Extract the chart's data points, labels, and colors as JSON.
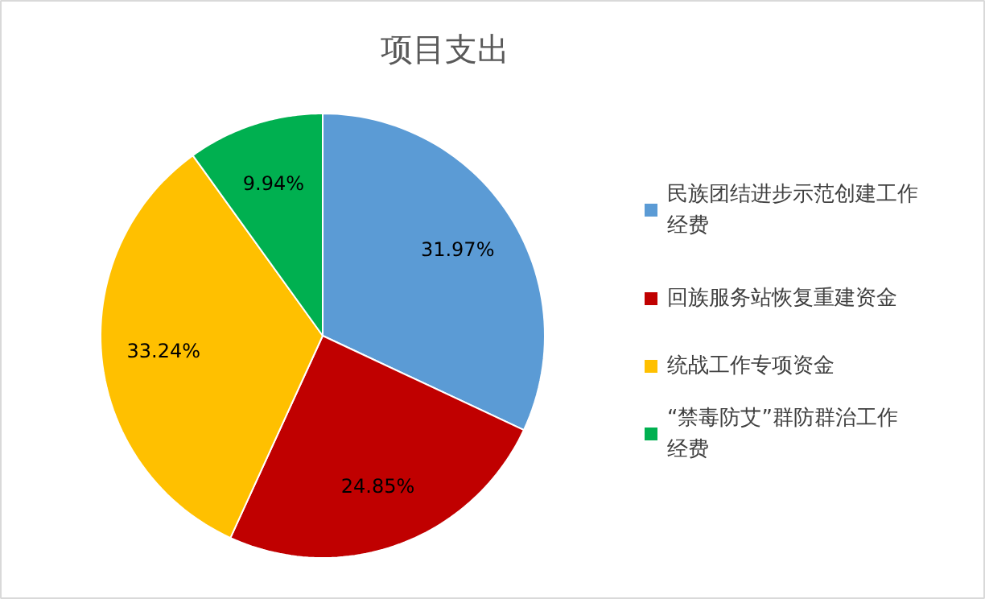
{
  "chart_data": {
    "type": "pie",
    "title": "项目支出",
    "categories": [
      "民族团结进步示范创建工作经费",
      "回族服务站恢复重建资金",
      "统战工作专项资金",
      "“禁毒防艾”群防群治工作经费"
    ],
    "values": [
      31.97,
      24.85,
      33.24,
      9.94
    ],
    "colors": [
      "#5b9bd5",
      "#c00000",
      "#ffc000",
      "#00b050"
    ],
    "value_labels": [
      "31.97%",
      "24.85%",
      "33.24%",
      "9.94%"
    ],
    "legend": "right"
  }
}
